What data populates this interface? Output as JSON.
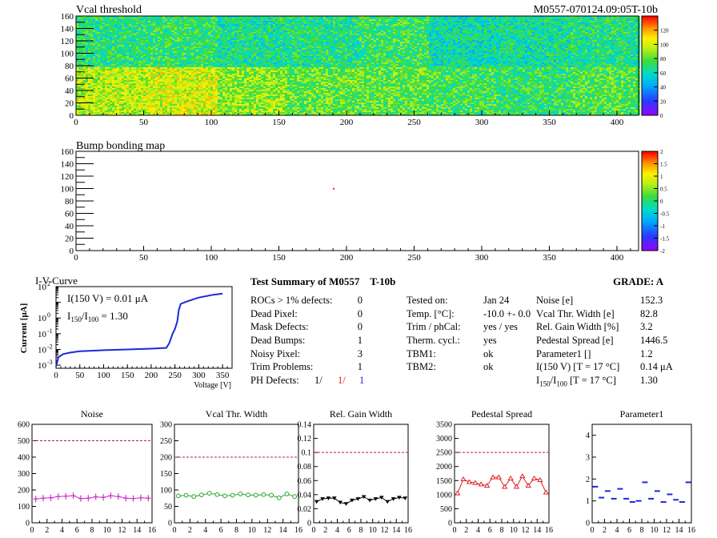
{
  "header": {
    "left": "Vcal threshold",
    "right": "M0557-070124.09:05T-10b"
  },
  "maps": [
    {
      "title": "Vcal threshold",
      "x_ticks": [
        "0",
        "50",
        "100",
        "150",
        "200",
        "250",
        "300",
        "350",
        "400"
      ],
      "y_ticks": [
        "0",
        "20",
        "40",
        "60",
        "80",
        "100",
        "120",
        "140",
        "160"
      ],
      "palette_ticks": [
        "0",
        "20",
        "40",
        "60",
        "80",
        "100",
        "120"
      ],
      "rows": 160,
      "cols": 416,
      "roc_base_values": [
        [
          70,
          72,
          66,
          68,
          74,
          62,
          64,
          68
        ],
        [
          95,
          100,
          88,
          82,
          80,
          76,
          72,
          78
        ]
      ],
      "z_range": [
        0,
        140
      ]
    },
    {
      "title": "Bump bonding map",
      "x_ticks": [
        "0",
        "50",
        "100",
        "150",
        "200",
        "250",
        "300",
        "350",
        "400"
      ],
      "y_ticks": [
        "0",
        "20",
        "40",
        "60",
        "80",
        "100",
        "120",
        "140",
        "160"
      ],
      "palette_ticks": [
        "-2",
        "-1.5",
        "-1",
        "-0.5",
        "0",
        "0.5",
        "1",
        "1.5",
        "2"
      ],
      "defects": [
        {
          "x": 190,
          "y": 101
        }
      ],
      "z_range": [
        -2,
        2
      ]
    }
  ],
  "iv": {
    "title": "I-V-Curve",
    "ylabel": "Current [μA]",
    "xlabel": "Voltage [V]",
    "annot1": "I(150 V) = 0.01 μA",
    "annot2_a": "I",
    "annot2_sub1": "150",
    "annot2_b": "/I",
    "annot2_sub2": "100",
    "annot2_c": " =  1.30",
    "x_ticks": [
      "0",
      "50",
      "100",
      "150",
      "200",
      "250",
      "300",
      "350"
    ],
    "y_ticks": [
      "10",
      "10",
      "10",
      "10"
    ],
    "y_exps": [
      "-3",
      "-2",
      "-1",
      "0"
    ],
    "y_top": "10",
    "y_top_exp": "2",
    "y_top_tick": "1",
    "color": "#1b2ad6"
  },
  "summary": {
    "title": "Test Summary of M0557",
    "title_suffix": "T-10b",
    "grade": "GRADE:  A",
    "left_rows": [
      {
        "label": "ROCs > 1% defects:",
        "value": "0"
      },
      {
        "label": "Dead Pixel:",
        "value": "0"
      },
      {
        "label": "Mask Defects:",
        "value": "0"
      },
      {
        "label": "Dead Bumps:",
        "value": "1"
      },
      {
        "label": "Noisy Pixel:",
        "value": "3"
      },
      {
        "label": "Trim Problems:",
        "value": "1"
      }
    ],
    "ph_label": "PH Defects:",
    "ph_values": [
      "1/",
      "1/",
      "1"
    ],
    "ph_colors": [
      "#000000",
      "#e02020",
      "#1b2ad6"
    ],
    "mid_rows": [
      {
        "label": "Tested on:",
        "value": "Jan 24"
      },
      {
        "label": "Temp. [°C]:",
        "value": "-10.0 +- 0.0"
      },
      {
        "label": "Trim / phCal:",
        "value": "yes / yes"
      },
      {
        "label": "Therm. cycl.:",
        "value": "yes"
      },
      {
        "label": "TBM1:",
        "value": "ok"
      },
      {
        "label": "TBM2:",
        "value": "ok"
      }
    ],
    "right_rows": [
      {
        "label": "Noise [e]",
        "value": "152.3"
      },
      {
        "label": "Vcal Thr. Width [e]",
        "value": "82.8"
      },
      {
        "label": "Rel. Gain Width [%]",
        "value": "3.2"
      },
      {
        "label": "Pedestal Spread [e]",
        "value": "1446.5"
      },
      {
        "label": "Parameter1 []",
        "value": "1.2"
      },
      {
        "label": "I(150 V) [T = 17 °C]",
        "value": "0.14 μA"
      }
    ],
    "ratio_label": {
      "a": "I",
      "s1": "150",
      "b": "/I",
      "s2": "100",
      "c": "  [T = 17 °C]"
    },
    "ratio_value": "1.30"
  },
  "chart_data": [
    {
      "type": "line",
      "title": "Noise",
      "x": [
        0,
        1,
        2,
        3,
        4,
        5,
        6,
        7,
        8,
        9,
        10,
        11,
        12,
        13,
        14,
        15
      ],
      "values": [
        145,
        150,
        152,
        160,
        162,
        165,
        148,
        150,
        158,
        155,
        165,
        160,
        150,
        148,
        152,
        150
      ],
      "ylim": [
        0,
        600
      ],
      "y_ticks": [
        0,
        100,
        200,
        300,
        400,
        500,
        600
      ],
      "x_ticks": [
        0,
        2,
        4,
        6,
        8,
        10,
        12,
        14,
        16
      ],
      "limit": 500,
      "color": "#d030c8",
      "marker": "cross"
    },
    {
      "type": "line",
      "title": "Vcal Thr. Width",
      "x": [
        0,
        1,
        2,
        3,
        4,
        5,
        6,
        7,
        8,
        9,
        10,
        11,
        12,
        13,
        14,
        15
      ],
      "values": [
        82,
        84,
        80,
        85,
        90,
        86,
        82,
        84,
        88,
        85,
        84,
        86,
        84,
        76,
        88,
        80
      ],
      "ylim": [
        0,
        300
      ],
      "y_ticks": [
        0,
        50,
        100,
        150,
        200,
        250,
        300
      ],
      "x_ticks": [
        0,
        2,
        4,
        6,
        8,
        10,
        12,
        14,
        16
      ],
      "limit": 200,
      "color": "#2aa52a",
      "marker": "circle"
    },
    {
      "type": "line",
      "title": "Rel. Gain Width",
      "x": [
        0,
        1,
        2,
        3,
        4,
        5,
        6,
        7,
        8,
        9,
        10,
        11,
        12,
        13,
        14,
        15
      ],
      "values": [
        0.03,
        0.034,
        0.035,
        0.035,
        0.029,
        0.027,
        0.032,
        0.034,
        0.037,
        0.032,
        0.034,
        0.036,
        0.03,
        0.034,
        0.036,
        0.035
      ],
      "ylim": [
        0,
        0.14
      ],
      "y_ticks": [
        0,
        0.02,
        0.04,
        0.06,
        0.08,
        0.1,
        0.12,
        0.14
      ],
      "y_tick_labels": [
        "0",
        "0.02",
        "0.04",
        "0.06",
        "0.08",
        "0.1",
        "0.12",
        "0.14"
      ],
      "x_ticks": [
        0,
        2,
        4,
        6,
        8,
        10,
        12,
        14,
        16
      ],
      "limit": 0.1,
      "color": "#000000",
      "marker": "triangle-down"
    },
    {
      "type": "line",
      "title": "Pedestal Spread",
      "x": [
        0,
        1,
        2,
        3,
        4,
        5,
        6,
        7,
        8,
        9,
        10,
        11,
        12,
        13,
        14,
        15
      ],
      "values": [
        1050,
        1550,
        1450,
        1420,
        1370,
        1320,
        1620,
        1620,
        1280,
        1580,
        1280,
        1660,
        1320,
        1580,
        1520,
        1080
      ],
      "ylim": [
        0,
        3500
      ],
      "y_ticks": [
        0,
        500,
        1000,
        1500,
        2000,
        2500,
        3000,
        3500
      ],
      "x_ticks": [
        0,
        2,
        4,
        6,
        8,
        10,
        12,
        14,
        16
      ],
      "limit": 2500,
      "color": "#e02020",
      "marker": "triangle-up"
    },
    {
      "type": "scatter",
      "title": "Parameter1",
      "x": [
        0,
        1,
        2,
        3,
        4,
        5,
        6,
        7,
        8,
        9,
        10,
        11,
        12,
        13,
        14,
        15
      ],
      "values": [
        1.65,
        1.15,
        1.45,
        1.1,
        1.55,
        1.1,
        0.95,
        1.0,
        1.85,
        1.1,
        1.45,
        0.95,
        1.3,
        1.05,
        0.95,
        1.85
      ],
      "ylim": [
        0,
        4.5
      ],
      "y_ticks": [
        0,
        1,
        2,
        3,
        4
      ],
      "x_ticks": [
        0,
        2,
        4,
        6,
        8,
        10,
        12,
        14,
        16
      ],
      "color": "#1b2ad6",
      "marker": "dash"
    }
  ]
}
